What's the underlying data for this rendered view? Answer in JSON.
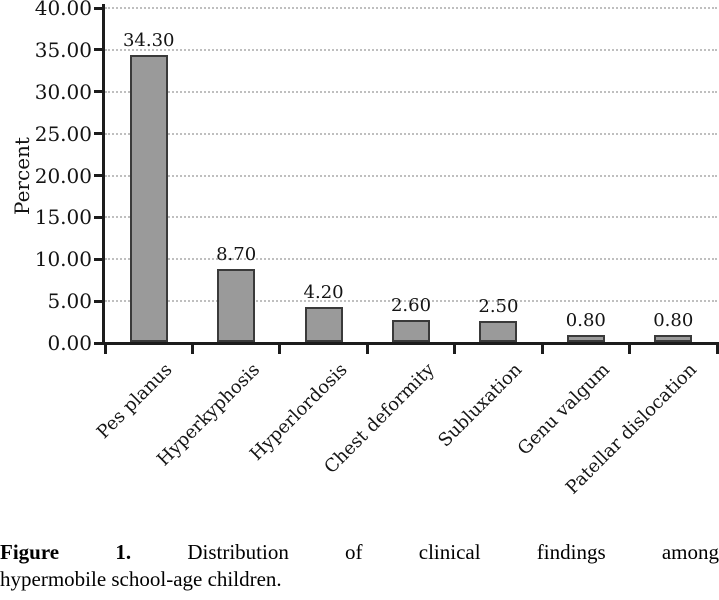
{
  "chart_data": {
    "type": "bar",
    "title": "",
    "xlabel": "",
    "ylabel": "Percent",
    "categories": [
      "Pes planus",
      "Hyperkyphosis",
      "Hyperlordosis",
      "Chest deformity",
      "Subluxation",
      "Genu valgum",
      "Patellar dislocation"
    ],
    "values": [
      34.3,
      8.7,
      4.2,
      2.6,
      2.5,
      0.8,
      0.8
    ],
    "value_labels": [
      "34.30",
      "8.70",
      "4.20",
      "2.60",
      "2.50",
      "0.80",
      "0.80"
    ],
    "ylim": [
      0,
      40
    ],
    "ytick_step": 5,
    "ytick_labels": [
      "0.00",
      "5.00",
      "10.00",
      "15.00",
      "20.00",
      "25.00",
      "30.00",
      "35.00",
      "40.00"
    ],
    "grid": "horizontal-dotted",
    "legend": "none",
    "bar_color": "#9a9a9a",
    "bar_border_color": "#3a3a3a",
    "axis_color": "#1c1c1c",
    "gridline_color": "#bfbfbf",
    "text_color": "#141414"
  },
  "caption": {
    "prefix": "Figure 1.",
    "line1_rest": "Distribution of clinical findings among",
    "line2": "hypermobile school-age children."
  }
}
